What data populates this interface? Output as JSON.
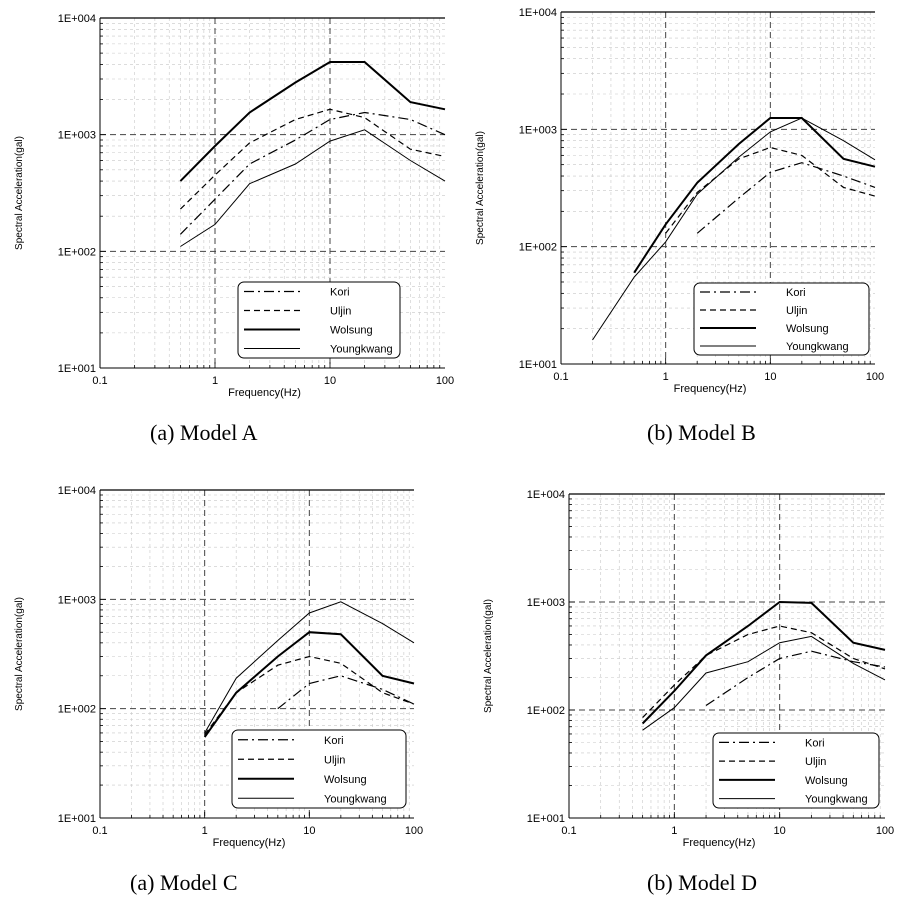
{
  "chart_data": [
    {
      "type": "line",
      "caption": "(a) Model A",
      "xlabel": "Frequency(Hz)",
      "ylabel": "Spectral Acceleration(gal)",
      "x_scale": "log",
      "y_scale": "log",
      "xlim": [
        0.1,
        100
      ],
      "ylim": [
        10,
        10000
      ],
      "x_ticks": [
        "0.1",
        "1",
        "10",
        "100"
      ],
      "y_ticks": [
        "1E+001",
        "1E+002",
        "1E+003",
        "1E+004"
      ],
      "grid": true,
      "legend_position": "lower-right",
      "series": [
        {
          "name": "Kori",
          "style": "dashdot",
          "x": [
            0.5,
            1,
            2,
            5,
            10,
            20,
            50,
            100
          ],
          "y": [
            140,
            280,
            560,
            900,
            1350,
            1550,
            1350,
            1000
          ]
        },
        {
          "name": "Uljin",
          "style": "dashed",
          "x": [
            0.5,
            1,
            2,
            5,
            10,
            20,
            50,
            100
          ],
          "y": [
            230,
            450,
            850,
            1350,
            1650,
            1400,
            750,
            650
          ]
        },
        {
          "name": "Wolsung",
          "style": "thick",
          "x": [
            0.5,
            1,
            2,
            5,
            10,
            20,
            50,
            100
          ],
          "y": [
            400,
            800,
            1550,
            2800,
            4200,
            4200,
            1900,
            1650
          ]
        },
        {
          "name": "Youngkwang",
          "style": "thin",
          "x": [
            0.5,
            1,
            2,
            5,
            10,
            20,
            50,
            100
          ],
          "y": [
            110,
            170,
            380,
            560,
            880,
            1100,
            600,
            400
          ]
        }
      ]
    },
    {
      "type": "line",
      "caption": "(b) Model B",
      "xlabel": "Frequency(Hz)",
      "ylabel": "Spectral Acceleration(gal)",
      "x_scale": "log",
      "y_scale": "log",
      "xlim": [
        0.1,
        100
      ],
      "ylim": [
        10,
        10000
      ],
      "x_ticks": [
        "0.1",
        "1",
        "10",
        "100"
      ],
      "y_ticks": [
        "1E+001",
        "1E+002",
        "1E+003",
        "1E+004"
      ],
      "grid": true,
      "legend_position": "lower-right",
      "series": [
        {
          "name": "Kori",
          "style": "dashdot",
          "x": [
            2,
            5,
            10,
            20,
            50,
            100
          ],
          "y": [
            130,
            260,
            430,
            520,
            400,
            320
          ]
        },
        {
          "name": "Uljin",
          "style": "dashed",
          "x": [
            1,
            2,
            5,
            10,
            20,
            50,
            100
          ],
          "y": [
            130,
            290,
            560,
            700,
            600,
            320,
            270
          ]
        },
        {
          "name": "Wolsung",
          "style": "thick",
          "x": [
            0.5,
            1,
            2,
            5,
            10,
            20,
            50,
            100
          ],
          "y": [
            60,
            155,
            350,
            750,
            1250,
            1250,
            560,
            480
          ]
        },
        {
          "name": "Youngkwang",
          "style": "thin",
          "x": [
            0.2,
            0.5,
            1,
            2,
            5,
            10,
            20,
            50,
            100
          ],
          "y": [
            16,
            55,
            110,
            280,
            580,
            950,
            1250,
            800,
            550
          ]
        }
      ]
    },
    {
      "type": "line",
      "caption": "(a) Model C",
      "xlabel": "Frequency(Hz)",
      "ylabel": "Spectral Acceleration(gal)",
      "x_scale": "log",
      "y_scale": "log",
      "xlim": [
        0.1,
        100
      ],
      "ylim": [
        10,
        10000
      ],
      "x_ticks": [
        "0.1",
        "1",
        "10",
        "100"
      ],
      "y_ticks": [
        "1E+001",
        "1E+002",
        "1E+003",
        "1E+004"
      ],
      "grid": true,
      "legend_position": "lower-right",
      "series": [
        {
          "name": "Kori",
          "style": "dashdot",
          "x": [
            5,
            10,
            20,
            50,
            100
          ],
          "y": [
            100,
            170,
            200,
            150,
            110
          ]
        },
        {
          "name": "Uljin",
          "style": "dashed",
          "x": [
            1,
            2,
            5,
            10,
            20,
            50,
            100
          ],
          "y": [
            58,
            140,
            250,
            300,
            260,
            140,
            110
          ]
        },
        {
          "name": "Wolsung",
          "style": "thick",
          "x": [
            1,
            2,
            5,
            10,
            20,
            50,
            100
          ],
          "y": [
            55,
            140,
            300,
            500,
            480,
            200,
            170
          ]
        },
        {
          "name": "Youngkwang",
          "style": "thin",
          "x": [
            1,
            2,
            5,
            10,
            20,
            50,
            100
          ],
          "y": [
            60,
            190,
            420,
            750,
            950,
            600,
            400
          ]
        }
      ]
    },
    {
      "type": "line",
      "caption": "(b) Model D",
      "xlabel": "Frequency(Hz)",
      "ylabel": "Spectral Acceleration(gal)",
      "x_scale": "log",
      "y_scale": "log",
      "xlim": [
        0.1,
        100
      ],
      "ylim": [
        10,
        10000
      ],
      "x_ticks": [
        "0.1",
        "1",
        "10",
        "100"
      ],
      "y_ticks": [
        "1E+001",
        "1E+002",
        "1E+003",
        "1E+004"
      ],
      "grid": true,
      "legend_position": "lower-right",
      "series": [
        {
          "name": "Kori",
          "style": "dashdot",
          "x": [
            2,
            5,
            10,
            20,
            50,
            100
          ],
          "y": [
            110,
            200,
            300,
            350,
            280,
            250
          ]
        },
        {
          "name": "Uljin",
          "style": "dashed",
          "x": [
            0.5,
            1,
            2,
            5,
            10,
            20,
            50,
            100
          ],
          "y": [
            85,
            170,
            320,
            500,
            600,
            520,
            300,
            240
          ]
        },
        {
          "name": "Wolsung",
          "style": "thick",
          "x": [
            0.5,
            1,
            2,
            5,
            10,
            20,
            50,
            100
          ],
          "y": [
            75,
            150,
            320,
            600,
            1000,
            980,
            420,
            360
          ]
        },
        {
          "name": "Youngkwang",
          "style": "thin",
          "x": [
            0.5,
            1,
            2,
            5,
            10,
            20,
            50,
            100
          ],
          "y": [
            65,
            105,
            220,
            280,
            420,
            480,
            270,
            190
          ]
        }
      ]
    }
  ]
}
